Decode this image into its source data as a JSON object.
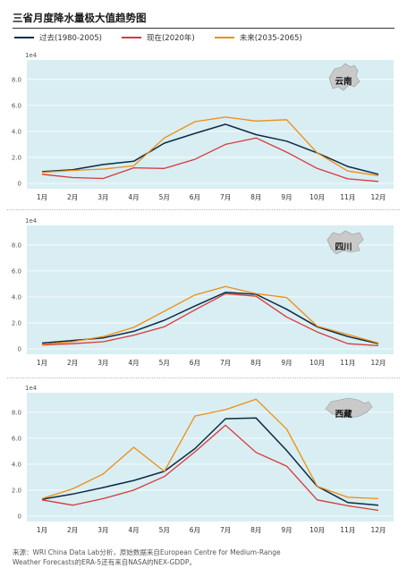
{
  "title": "三省月度降水量极大值趋势图",
  "legend": [
    {
      "label": "过去(1980-2005)",
      "color": "#0e2a47"
    },
    {
      "label": "现在(2020年)",
      "color": "#d9383a"
    },
    {
      "label": "未来(2035-2065)",
      "color": "#f08c12"
    }
  ],
  "footnote_line1": "来源：WRI China Data Lab分析，原始数据来自European Centre for Medium-Range",
  "footnote_line2": "Weather Forecasts的ERA-5还有来自NASA的NEX-GDDP。",
  "chart_data": [
    {
      "type": "line",
      "title": "云南",
      "exponent_label": "1e4",
      "categories": [
        "1月",
        "2月",
        "3月",
        "4月",
        "5月",
        "6月",
        "7月",
        "8月",
        "9月",
        "10月",
        "11月",
        "12月"
      ],
      "yticks": [
        "0",
        "2.0",
        "4.0",
        "6.0",
        "8.0"
      ],
      "ylim": [
        0,
        9.5
      ],
      "series": [
        {
          "name": "过去(1980-2005)",
          "color": "#0e2a47",
          "values": [
            0.9,
            1.05,
            1.45,
            1.7,
            3.1,
            3.85,
            4.55,
            3.75,
            3.25,
            2.35,
            1.3,
            0.7
          ]
        },
        {
          "name": "现在(2020年)",
          "color": "#d9383a",
          "values": [
            0.7,
            0.45,
            0.38,
            1.2,
            1.15,
            1.85,
            3.0,
            3.5,
            2.4,
            1.15,
            0.35,
            0.15
          ]
        },
        {
          "name": "未来(2035-2065)",
          "color": "#f08c12",
          "values": [
            0.85,
            1.0,
            1.1,
            1.35,
            3.5,
            4.75,
            5.1,
            4.8,
            4.9,
            2.35,
            0.95,
            0.6
          ]
        }
      ]
    },
    {
      "type": "line",
      "title": "四川",
      "exponent_label": "1e4",
      "categories": [
        "1月",
        "2月",
        "3月",
        "4月",
        "5月",
        "6月",
        "7月",
        "8月",
        "9月",
        "10月",
        "11月",
        "12月"
      ],
      "yticks": [
        "0",
        "2.0",
        "4.0",
        "6.0",
        "8.0"
      ],
      "ylim": [
        0,
        9.5
      ],
      "series": [
        {
          "name": "过去(1980-2005)",
          "color": "#0e2a47",
          "values": [
            0.45,
            0.65,
            0.85,
            1.35,
            2.2,
            3.3,
            4.35,
            4.2,
            3.05,
            1.7,
            0.95,
            0.4
          ]
        },
        {
          "name": "现在(2020年)",
          "color": "#d9383a",
          "values": [
            0.3,
            0.4,
            0.55,
            1.05,
            1.7,
            3.0,
            4.25,
            4.05,
            2.45,
            1.3,
            0.4,
            0.25
          ]
        },
        {
          "name": "未来(2035-2065)",
          "color": "#f08c12",
          "values": [
            0.35,
            0.55,
            0.95,
            1.65,
            2.9,
            4.15,
            4.8,
            4.25,
            3.95,
            1.75,
            1.1,
            0.45
          ]
        }
      ]
    },
    {
      "type": "line",
      "title": "西藏",
      "exponent_label": "1e4",
      "categories": [
        "1月",
        "2月",
        "3月",
        "4月",
        "5月",
        "6月",
        "7月",
        "8月",
        "9月",
        "10月",
        "11月",
        "12月"
      ],
      "yticks": [
        "0",
        "2.0",
        "4.0",
        "6.0",
        "8.0"
      ],
      "ylim": [
        0,
        9.5
      ],
      "series": [
        {
          "name": "过去(1980-2005)",
          "color": "#0e2a47",
          "values": [
            1.3,
            1.7,
            2.2,
            2.75,
            3.45,
            5.2,
            7.5,
            7.55,
            5.05,
            2.3,
            1.05,
            0.85
          ]
        },
        {
          "name": "现在(2020年)",
          "color": "#d9383a",
          "values": [
            1.25,
            0.85,
            1.35,
            2.0,
            3.05,
            4.95,
            7.0,
            4.9,
            3.85,
            1.25,
            0.8,
            0.45
          ]
        },
        {
          "name": "未来(2035-2065)",
          "color": "#f08c12",
          "values": [
            1.35,
            2.1,
            3.25,
            5.3,
            3.45,
            7.7,
            8.2,
            9.0,
            6.7,
            2.3,
            1.45,
            1.35
          ]
        }
      ]
    }
  ]
}
